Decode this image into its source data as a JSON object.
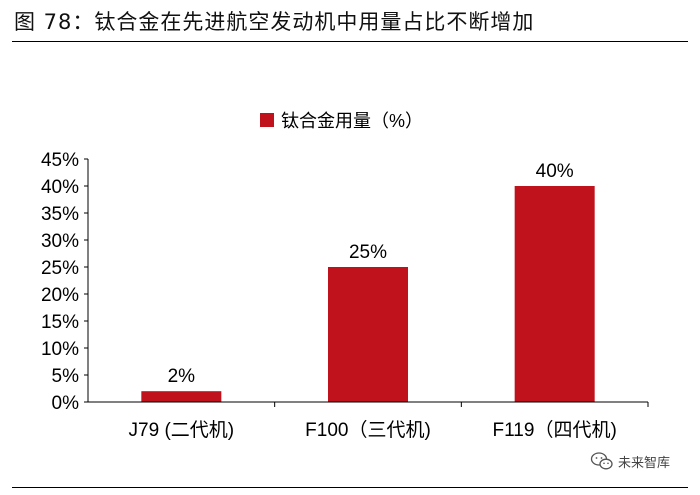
{
  "figure": {
    "title": "图 78：钛合金在先进航空发动机中用量占比不断增加"
  },
  "chart_data": {
    "type": "bar",
    "categories": [
      "J79 (二代机)",
      "F100（三代机)",
      "F119（四代机)"
    ],
    "series": [
      {
        "name": "钛合金用量（%）",
        "values": [
          2,
          25,
          40
        ],
        "labels": [
          "2%",
          "25%",
          "40%"
        ]
      }
    ],
    "title": "",
    "xlabel": "",
    "ylabel": "",
    "ylim": [
      0,
      45
    ],
    "yticks": [
      0,
      5,
      10,
      15,
      20,
      25,
      30,
      35,
      40,
      45
    ],
    "ytick_labels": [
      "0%",
      "5%",
      "10%",
      "15%",
      "20%",
      "25%",
      "30%",
      "35%",
      "40%",
      "45%"
    ],
    "grid": false,
    "legend": "top-center",
    "colors": {
      "bar": "#C0121C",
      "axis": "#000000"
    }
  },
  "watermark": {
    "icon": "wechat-icon",
    "text": "未来智库"
  }
}
